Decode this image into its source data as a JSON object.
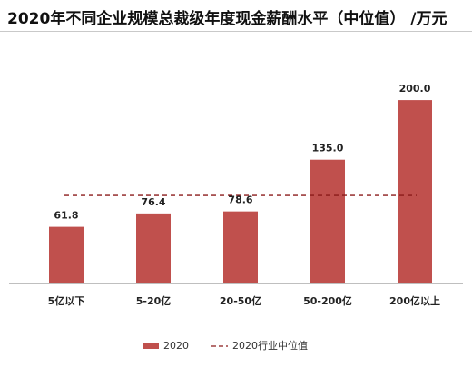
{
  "chart_data": {
    "type": "bar",
    "title": "2020年不同企业规模总裁级年度现金薪酬水平（中位值） /万元",
    "categories": [
      "5亿以下",
      "5-20亿",
      "20-50亿",
      "50-200亿",
      "200亿以上"
    ],
    "series": [
      {
        "name": "2020",
        "values": [
          61.8,
          76.4,
          78.6,
          135.0,
          200.0
        ],
        "color": "#c0504d"
      }
    ],
    "reference_line": {
      "name": "2020行业中位值",
      "value": 96,
      "style": "dashed",
      "color": "#8b1a1a"
    },
    "data_labels": [
      "61.8",
      "76.4",
      "78.6",
      "135.0",
      "200.0"
    ],
    "xlabel": "",
    "ylabel": "",
    "ylim": [
      0,
      210
    ],
    "grid": false,
    "legend_position": "bottom"
  }
}
